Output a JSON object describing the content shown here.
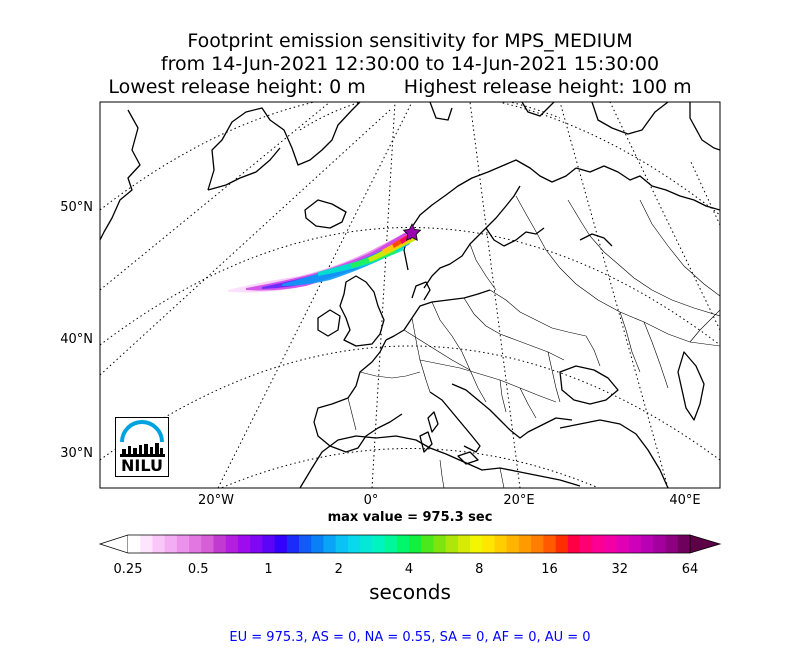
{
  "title": {
    "line1": "Footprint emission sensitivity for MPS_MEDIUM",
    "line2": "from 14-Jun-2021 12:30:00 to 14-Jun-2021 15:30:00",
    "line3_left": "Lowest release height: 0 m",
    "line3_right": "Highest release height: 100 m"
  },
  "map": {
    "lat_labels": [
      "50°N",
      "40°N",
      "30°N"
    ],
    "lon_labels": [
      "20°W",
      "0°",
      "20°E",
      "40°E"
    ],
    "release_marker_icon": "star-icon",
    "logo_text": "NILU",
    "logo_colors": {
      "arc": "#00a3e0",
      "city": "#000000"
    }
  },
  "max_value": "max value = 975.3 sec",
  "colorbar": {
    "ticks": [
      "0.25",
      "0.5",
      "1",
      "2",
      "4",
      "8",
      "16",
      "32",
      "64"
    ],
    "units": "seconds",
    "colors": [
      "#ffffff",
      "#fde6fd",
      "#f9c8f9",
      "#f3aef3",
      "#ec92ec",
      "#e277e2",
      "#d65ed6",
      "#c13bd3",
      "#b31ee0",
      "#9f0bef",
      "#7f07f4",
      "#5b04f8",
      "#3300fb",
      "#1b2cfa",
      "#0f5cf9",
      "#0a80f7",
      "#0aa4f6",
      "#0ac2f4",
      "#0ad8ec",
      "#05e8d8",
      "#00f4c0",
      "#00f89a",
      "#00f76c",
      "#10f03c",
      "#4ae81c",
      "#7ee40f",
      "#aee60a",
      "#d6ec06",
      "#f4f500",
      "#ffe600",
      "#ffcd00",
      "#ffb400",
      "#ff9a00",
      "#ff7d00",
      "#ff5a00",
      "#ff2e00",
      "#ff0044",
      "#ff0073",
      "#fc0093",
      "#f200a6",
      "#e200b4",
      "#cf00b9",
      "#b900b4",
      "#a3009f",
      "#8c0080",
      "#70005e"
    ],
    "over_color": "#5c0047"
  },
  "region_line": "EU = 975.3,  AS = 0,  NA = 0.55,  SA = 0,  AF = 0,  AU = 0"
}
